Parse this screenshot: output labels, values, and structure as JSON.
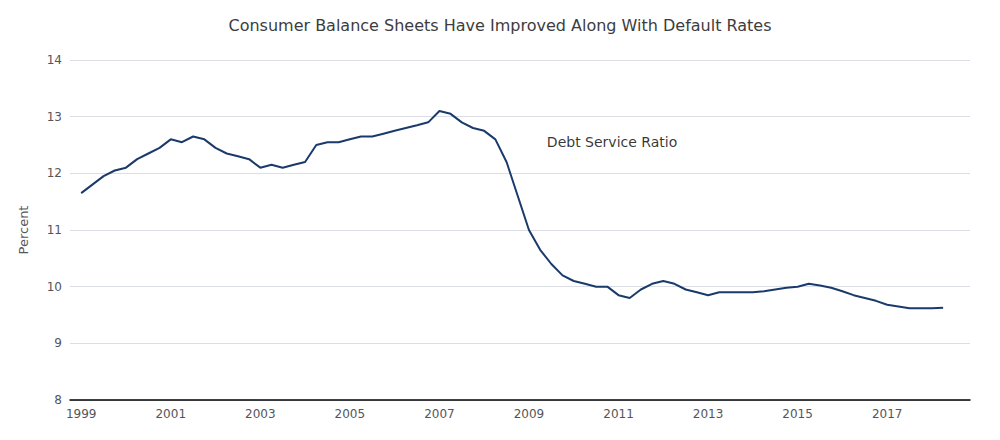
{
  "chart_data": {
    "type": "line",
    "title": "Consumer Balance Sheets Have Improved Along With Default Rates",
    "ylabel": "Percent",
    "annotations": [
      {
        "text": "Debt Service Ratio",
        "x": 2009.4,
        "y": 12.55
      }
    ],
    "color": "#1a3a6b",
    "grid": true,
    "xlim": [
      1998.75,
      2018.85
    ],
    "xticks": [
      1999,
      2001,
      2003,
      2005,
      2007,
      2009,
      2011,
      2013,
      2015,
      2017
    ],
    "ylim": [
      8,
      14
    ],
    "yticks": [
      8,
      9,
      10,
      11,
      12,
      13,
      14
    ],
    "x": [
      1999.0,
      1999.25,
      1999.5,
      1999.75,
      2000.0,
      2000.25,
      2000.5,
      2000.75,
      2001.0,
      2001.25,
      2001.5,
      2001.75,
      2002.0,
      2002.25,
      2002.5,
      2002.75,
      2003.0,
      2003.25,
      2003.5,
      2003.75,
      2004.0,
      2004.25,
      2004.5,
      2004.75,
      2005.0,
      2005.25,
      2005.5,
      2005.75,
      2006.0,
      2006.25,
      2006.5,
      2006.75,
      2007.0,
      2007.25,
      2007.5,
      2007.75,
      2008.0,
      2008.25,
      2008.5,
      2008.75,
      2009.0,
      2009.25,
      2009.5,
      2009.75,
      2010.0,
      2010.25,
      2010.5,
      2010.75,
      2011.0,
      2011.25,
      2011.5,
      2011.75,
      2012.0,
      2012.25,
      2012.5,
      2012.75,
      2013.0,
      2013.25,
      2013.5,
      2013.75,
      2014.0,
      2014.25,
      2014.5,
      2014.75,
      2015.0,
      2015.25,
      2015.5,
      2015.75,
      2016.0,
      2016.25,
      2016.5,
      2016.75,
      2017.0,
      2017.25,
      2017.5,
      2017.75,
      2018.0,
      2018.25
    ],
    "values": [
      11.65,
      11.8,
      11.95,
      12.05,
      12.1,
      12.25,
      12.35,
      12.45,
      12.6,
      12.55,
      12.65,
      12.6,
      12.45,
      12.35,
      12.3,
      12.25,
      12.1,
      12.15,
      12.1,
      12.15,
      12.2,
      12.5,
      12.55,
      12.55,
      12.6,
      12.65,
      12.65,
      12.7,
      12.75,
      12.8,
      12.85,
      12.9,
      13.1,
      13.05,
      12.9,
      12.8,
      12.75,
      12.6,
      12.2,
      11.6,
      11.0,
      10.65,
      10.4,
      10.2,
      10.1,
      10.05,
      10.0,
      10.0,
      9.85,
      9.8,
      9.95,
      10.05,
      10.1,
      10.05,
      9.95,
      9.9,
      9.85,
      9.9,
      9.9,
      9.9,
      9.9,
      9.92,
      9.95,
      9.98,
      10.0,
      10.05,
      10.02,
      9.98,
      9.92,
      9.85,
      9.8,
      9.75,
      9.68,
      9.65,
      9.62,
      9.62,
      9.62,
      9.63
    ]
  }
}
